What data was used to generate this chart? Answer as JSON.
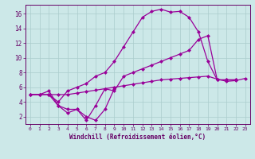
{
  "xlabel": "Windchill (Refroidissement éolien,°C)",
  "background_color": "#cce8e8",
  "grid_color": "#aacccc",
  "line_color": "#990099",
  "xlim": [
    -0.5,
    23.5
  ],
  "ylim": [
    1.0,
    17.2
  ],
  "xticks": [
    0,
    1,
    2,
    3,
    4,
    5,
    6,
    7,
    8,
    9,
    10,
    11,
    12,
    13,
    14,
    15,
    16,
    17,
    18,
    19,
    20,
    21,
    22,
    23
  ],
  "yticks": [
    2,
    4,
    6,
    8,
    10,
    12,
    14,
    16
  ],
  "lines": [
    {
      "x": [
        0,
        1,
        2,
        3,
        4,
        5,
        6,
        7,
        8,
        9,
        10,
        11,
        12,
        13,
        14,
        15,
        16,
        17,
        18,
        19,
        20,
        21,
        22,
        23
      ],
      "y": [
        5.0,
        5.0,
        5.0,
        5.0,
        5.0,
        5.2,
        5.4,
        5.6,
        5.8,
        6.0,
        6.2,
        6.4,
        6.6,
        6.8,
        7.0,
        7.1,
        7.2,
        7.3,
        7.4,
        7.5,
        7.1,
        6.8,
        6.9,
        7.2
      ]
    },
    {
      "x": [
        0,
        1,
        2,
        3,
        4,
        5,
        6,
        7,
        8,
        9,
        10,
        11,
        12,
        13,
        14,
        15,
        16,
        17,
        18,
        19,
        20,
        21,
        22
      ],
      "y": [
        5.0,
        5.0,
        5.0,
        4.0,
        5.5,
        6.0,
        6.5,
        7.5,
        8.0,
        9.5,
        11.5,
        13.5,
        15.5,
        16.3,
        16.6,
        16.2,
        16.3,
        15.5,
        13.5,
        9.5,
        7.0,
        7.0,
        7.0
      ]
    },
    {
      "x": [
        0,
        1,
        2,
        3,
        4,
        5,
        6,
        7,
        8,
        9,
        10,
        11,
        12,
        13,
        14,
        15,
        16,
        17,
        18,
        19,
        20,
        21,
        22
      ],
      "y": [
        5.0,
        5.0,
        5.5,
        3.5,
        3.0,
        3.0,
        1.5,
        3.5,
        5.8,
        5.5,
        7.5,
        8.0,
        8.5,
        9.0,
        9.5,
        10.0,
        10.5,
        11.0,
        12.5,
        13.0,
        7.0,
        7.0,
        7.0
      ]
    },
    {
      "x": [
        2,
        3,
        4,
        5,
        6,
        7,
        8,
        9
      ],
      "y": [
        5.0,
        3.5,
        2.5,
        3.0,
        2.0,
        1.5,
        3.0,
        5.8
      ]
    }
  ]
}
